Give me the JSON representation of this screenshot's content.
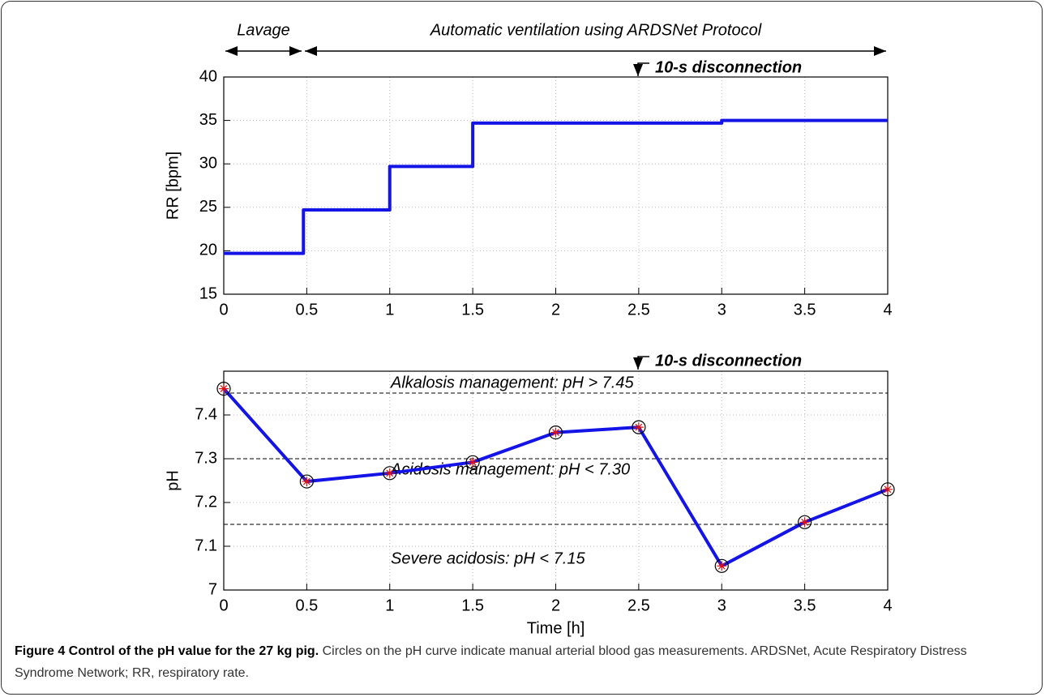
{
  "chart_data": [
    {
      "type": "line",
      "ylabel": "RR [bpm]",
      "annotations": [
        "Lavage",
        "Automatic ventilation using ARDSNet Protocol",
        "10-s disconnection"
      ],
      "xlim": [
        0,
        4
      ],
      "xticks": [
        0,
        0.5,
        1,
        1.5,
        2,
        2.5,
        3,
        3.5,
        4
      ],
      "ylim": [
        15,
        40
      ],
      "yticks": [
        15,
        20,
        25,
        30,
        35,
        40
      ],
      "grid": true,
      "series": [
        {
          "name": "RR",
          "color": "#1414e6",
          "x": [
            0,
            0.48,
            0.48,
            1,
            1,
            1.5,
            1.5,
            3,
            3,
            4
          ],
          "values": [
            19.7,
            19.7,
            24.7,
            24.7,
            29.7,
            29.7,
            34.7,
            34.7,
            35,
            35
          ]
        }
      ]
    },
    {
      "type": "line",
      "ylabel": "pH",
      "xlabel": "Time [h]",
      "annotations": [
        "10-s disconnection"
      ],
      "xlim": [
        0,
        4
      ],
      "xticks": [
        0,
        0.5,
        1,
        1.5,
        2,
        2.5,
        3,
        3.5,
        4
      ],
      "ylim": [
        7,
        7.5
      ],
      "yticks": [
        7,
        7.1,
        7.2,
        7.3,
        7.4
      ],
      "grid": true,
      "reference_lines": [
        {
          "value": 7.45,
          "label": "Alkalosis management: pH > 7.45"
        },
        {
          "value": 7.3,
          "label": "Acidosis management: pH < 7.30"
        },
        {
          "value": 7.15,
          "label": "Severe acidosis: pH < 7.15"
        }
      ],
      "series": [
        {
          "name": "pH",
          "color": "#1414e6",
          "marker": "circle",
          "x": [
            0,
            0.5,
            1,
            1.5,
            2,
            2.5,
            3,
            3.5,
            4
          ],
          "values": [
            7.46,
            7.248,
            7.267,
            7.292,
            7.36,
            7.372,
            7.055,
            7.155,
            7.23
          ]
        }
      ]
    }
  ],
  "caption": {
    "title": "Figure 4 Control of the pH value for the 27 kg pig.",
    "text": "Circles on the pH curve indicate manual arterial blood gas measurements. ARDSNet, Acute Respiratory Distress Syndrome Network; RR, respiratory rate."
  }
}
